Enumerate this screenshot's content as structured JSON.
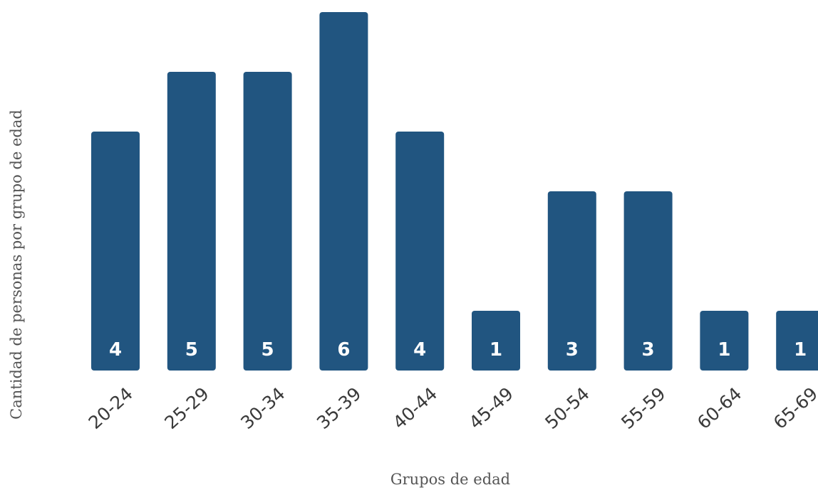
{
  "chart_data": {
    "type": "bar",
    "title": "",
    "xlabel": "Grupos de edad",
    "ylabel": "Cantidad de personas por grupo de edad",
    "categories": [
      "20-24",
      "25-29",
      "30-34",
      "35-39",
      "40-44",
      "45-49",
      "50-54",
      "55-59",
      "60-64",
      "65-69"
    ],
    "values": [
      4,
      5,
      5,
      6,
      4,
      1,
      3,
      3,
      1,
      1
    ],
    "ylim": [
      0,
      6
    ],
    "grid": false,
    "data_labels": true,
    "colors": {
      "bar": "#215580",
      "bar_label": "#ffffff",
      "tick_label": "#3a3a3a",
      "axis_title": "#555555",
      "background": "#ffffff"
    }
  }
}
